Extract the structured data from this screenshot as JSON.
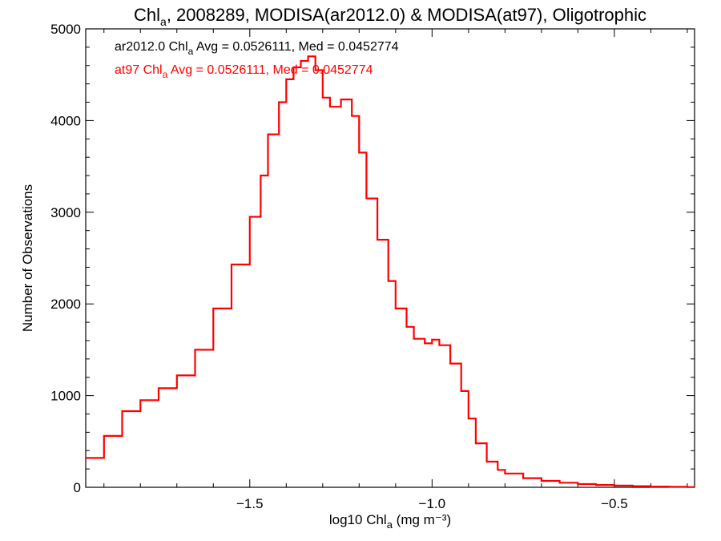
{
  "chart_data": {
    "type": "line",
    "style": "step-histogram",
    "title_parts": {
      "main": "Chl",
      "sub": "a",
      "rest": ", 2008289, MODISA(ar2012.0) & MODISA(at97), Oligotrophic"
    },
    "xlabel_parts": {
      "main": "log10 Chl",
      "sub": "a",
      "rest": " (mg m⁻³)"
    },
    "ylabel": "Number of Observations",
    "xlim": [
      -1.95,
      -0.28
    ],
    "ylim": [
      0,
      5000
    ],
    "xticks": [
      -1.5,
      -1.0,
      -0.5
    ],
    "xtick_labels": [
      "−1.5",
      "−1.0",
      "−0.5"
    ],
    "yticks": [
      0,
      1000,
      2000,
      3000,
      4000,
      5000
    ],
    "ytick_labels": [
      "0",
      "1000",
      "2000",
      "3000",
      "4000",
      "5000"
    ],
    "grid": false,
    "annotations": [
      {
        "pre": "ar2012.0 Chl",
        "sub": "a",
        "post": " Avg = 0.0526111, Med = 0.0452774",
        "color": "#000000"
      },
      {
        "pre": "at97 Chl",
        "sub": "a",
        "post": " Avg = 0.0526111, Med = 0.0452774",
        "color": "#ff0000"
      }
    ],
    "series": [
      {
        "color": "#ff0000",
        "x": [
          -1.95,
          -1.9,
          -1.85,
          -1.8,
          -1.75,
          -1.7,
          -1.65,
          -1.6,
          -1.55,
          -1.5,
          -1.47,
          -1.45,
          -1.42,
          -1.4,
          -1.38,
          -1.36,
          -1.34,
          -1.32,
          -1.3,
          -1.28,
          -1.25,
          -1.22,
          -1.2,
          -1.18,
          -1.15,
          -1.12,
          -1.1,
          -1.07,
          -1.05,
          -1.02,
          -1.0,
          -0.98,
          -0.95,
          -0.92,
          -0.9,
          -0.88,
          -0.85,
          -0.82,
          -0.8,
          -0.75,
          -0.7,
          -0.65,
          -0.6,
          -0.55,
          -0.5,
          -0.45,
          -0.4,
          -0.35,
          -0.3
        ],
        "y": [
          320,
          560,
          830,
          950,
          1080,
          1220,
          1500,
          1950,
          2430,
          2950,
          3400,
          3850,
          4200,
          4450,
          4580,
          4650,
          4700,
          4550,
          4250,
          4150,
          4230,
          4050,
          3650,
          3150,
          2700,
          2250,
          1950,
          1750,
          1620,
          1570,
          1610,
          1550,
          1350,
          1050,
          750,
          480,
          280,
          190,
          150,
          100,
          70,
          50,
          35,
          25,
          18,
          12,
          8,
          5,
          3
        ]
      }
    ]
  }
}
